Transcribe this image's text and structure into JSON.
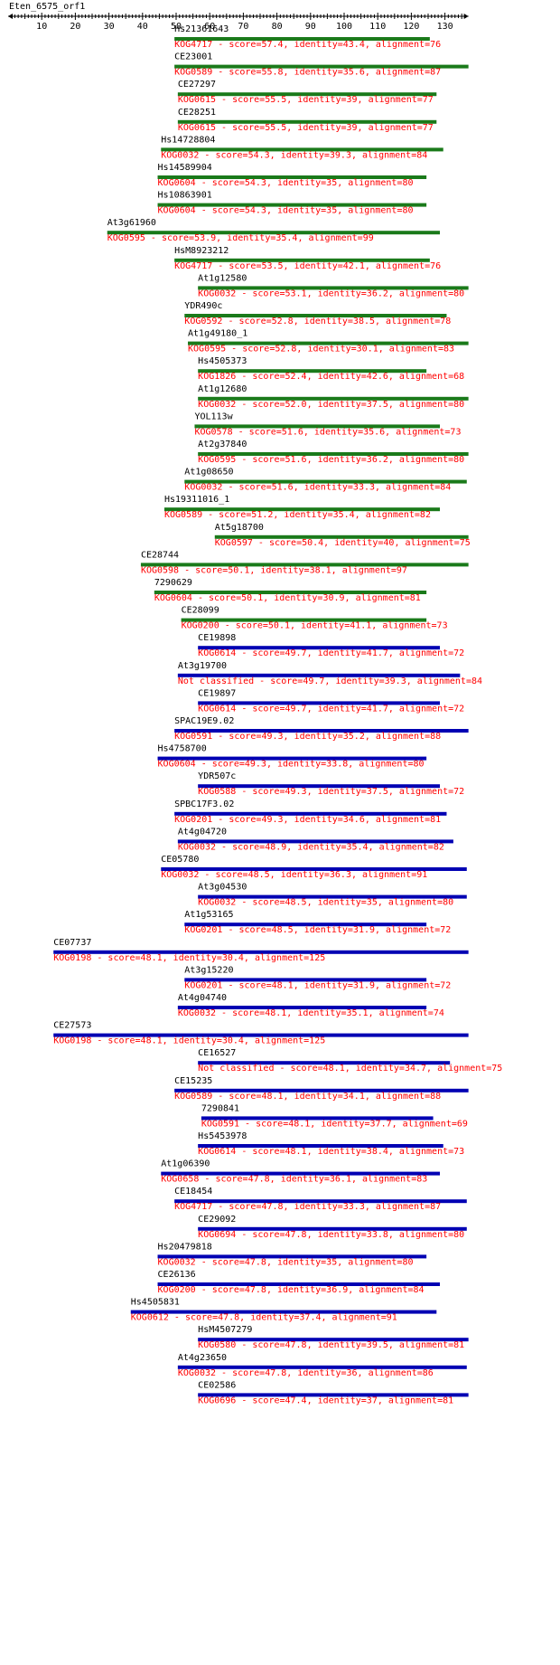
{
  "title": "Eten_6575_orf1",
  "axis": {
    "min": 0,
    "max": 137,
    "major_ticks": [
      10,
      20,
      30,
      40,
      50,
      60,
      70,
      80,
      90,
      100,
      110,
      120,
      130
    ]
  },
  "colors": {
    "green_bar": "#1a7a1a",
    "blue_bar": "#0000b3",
    "info_text": "#ff0000",
    "label_text": "#000000"
  },
  "hits": [
    {
      "name": "Hs21361643",
      "start": 49.5,
      "end": 125.5,
      "color": "green",
      "kog": "KOG4717",
      "score": "57.4",
      "identity": "43.4",
      "alignment": "76"
    },
    {
      "name": "CE23001",
      "start": 49.5,
      "end": 137,
      "color": "green",
      "kog": "KOG0589",
      "score": "55.8",
      "identity": "35.6",
      "alignment": "87"
    },
    {
      "name": "CE27297",
      "start": 50.5,
      "end": 127.5,
      "color": "green",
      "kog": "KOG0615",
      "score": "55.5",
      "identity": "39",
      "alignment": "77"
    },
    {
      "name": "CE28251",
      "start": 50.5,
      "end": 127.5,
      "color": "green",
      "kog": "KOG0615",
      "score": "55.5",
      "identity": "39",
      "alignment": "77"
    },
    {
      "name": "Hs14728804",
      "start": 45.5,
      "end": 129.5,
      "color": "green",
      "kog": "KOG0032",
      "score": "54.3",
      "identity": "39.3",
      "alignment": "84"
    },
    {
      "name": "Hs14589904",
      "start": 44.5,
      "end": 124.5,
      "color": "green",
      "kog": "KOG0604",
      "score": "54.3",
      "identity": "35",
      "alignment": "80"
    },
    {
      "name": "Hs10863901",
      "start": 44.5,
      "end": 124.5,
      "color": "green",
      "kog": "KOG0604",
      "score": "54.3",
      "identity": "35",
      "alignment": "80"
    },
    {
      "name": "At3g61960",
      "start": 29.5,
      "end": 128.5,
      "color": "green",
      "kog": "KOG0595",
      "score": "53.9",
      "identity": "35.4",
      "alignment": "99"
    },
    {
      "name": "HsM8923212",
      "start": 49.5,
      "end": 125.5,
      "color": "green",
      "kog": "KOG4717",
      "score": "53.5",
      "identity": "42.1",
      "alignment": "76"
    },
    {
      "name": "At1g12580",
      "start": 56.5,
      "end": 137,
      "color": "green",
      "kog": "KOG0032",
      "score": "53.1",
      "identity": "36.2",
      "alignment": "80"
    },
    {
      "name": "YDR490c",
      "start": 52.5,
      "end": 130.5,
      "color": "green",
      "kog": "KOG0592",
      "score": "52.8",
      "identity": "38.5",
      "alignment": "78"
    },
    {
      "name": "At1g49180_1",
      "start": 53.5,
      "end": 137,
      "color": "green",
      "kog": "KOG0595",
      "score": "52.8",
      "identity": "30.1",
      "alignment": "83"
    },
    {
      "name": "Hs4505373",
      "start": 56.5,
      "end": 124.5,
      "color": "green",
      "kog": "KOG1826",
      "score": "52.4",
      "identity": "42.6",
      "alignment": "68"
    },
    {
      "name": "At1g12680",
      "start": 56.5,
      "end": 137,
      "color": "green",
      "kog": "KOG0032",
      "score": "52.0",
      "identity": "37.5",
      "alignment": "80"
    },
    {
      "name": "YOL113w",
      "start": 55.5,
      "end": 128.5,
      "color": "green",
      "kog": "KOG0578",
      "score": "51.6",
      "identity": "35.6",
      "alignment": "73"
    },
    {
      "name": "At2g37840",
      "start": 56.5,
      "end": 137,
      "color": "green",
      "kog": "KOG0595",
      "score": "51.6",
      "identity": "36.2",
      "alignment": "80"
    },
    {
      "name": "At1g08650",
      "start": 52.5,
      "end": 136.5,
      "color": "green",
      "kog": "KOG0032",
      "score": "51.6",
      "identity": "33.3",
      "alignment": "84"
    },
    {
      "name": "Hs19311016_1",
      "start": 46.5,
      "end": 128.5,
      "color": "green",
      "kog": "KOG0589",
      "score": "51.2",
      "identity": "35.4",
      "alignment": "82"
    },
    {
      "name": "At5g18700",
      "start": 61.5,
      "end": 137,
      "color": "green",
      "kog": "KOG0597",
      "score": "50.4",
      "identity": "40",
      "alignment": "75"
    },
    {
      "name": "CE28744",
      "start": 39.5,
      "end": 137,
      "color": "green",
      "kog": "KOG0598",
      "score": "50.1",
      "identity": "38.1",
      "alignment": "97"
    },
    {
      "name": "7290629",
      "start": 43.5,
      "end": 124.5,
      "color": "green",
      "kog": "KOG0604",
      "score": "50.1",
      "identity": "30.9",
      "alignment": "81"
    },
    {
      "name": "CE28099",
      "start": 51.5,
      "end": 124.5,
      "color": "green",
      "kog": "KOG0200",
      "score": "50.1",
      "identity": "41.1",
      "alignment": "73"
    },
    {
      "name": "CE19898",
      "start": 56.5,
      "end": 128.5,
      "color": "blue",
      "kog": "KOG0614",
      "score": "49.7",
      "identity": "41.7",
      "alignment": "72"
    },
    {
      "name": "At3g19700",
      "start": 50.5,
      "end": 134.5,
      "color": "blue",
      "kog": "Not classified",
      "score": "49.7",
      "identity": "39.3",
      "alignment": "84"
    },
    {
      "name": "CE19897",
      "start": 56.5,
      "end": 128.5,
      "color": "blue",
      "kog": "KOG0614",
      "score": "49.7",
      "identity": "41.7",
      "alignment": "72"
    },
    {
      "name": "SPAC19E9.02",
      "start": 49.5,
      "end": 137,
      "color": "blue",
      "kog": "KOG0591",
      "score": "49.3",
      "identity": "35.2",
      "alignment": "88"
    },
    {
      "name": "Hs4758700",
      "start": 44.5,
      "end": 124.5,
      "color": "blue",
      "kog": "KOG0604",
      "score": "49.3",
      "identity": "33.8",
      "alignment": "80"
    },
    {
      "name": "YDR507c",
      "start": 56.5,
      "end": 128.5,
      "color": "blue",
      "kog": "KOG0588",
      "score": "49.3",
      "identity": "37.5",
      "alignment": "72"
    },
    {
      "name": "SPBC17F3.02",
      "start": 49.5,
      "end": 130.5,
      "color": "blue",
      "kog": "KOG0201",
      "score": "49.3",
      "identity": "34.6",
      "alignment": "81"
    },
    {
      "name": "At4g04720",
      "start": 50.5,
      "end": 132.5,
      "color": "blue",
      "kog": "KOG0032",
      "score": "48.9",
      "identity": "35.4",
      "alignment": "82"
    },
    {
      "name": "CE05780",
      "start": 45.5,
      "end": 136.5,
      "color": "blue",
      "kog": "KOG0032",
      "score": "48.5",
      "identity": "36.3",
      "alignment": "91"
    },
    {
      "name": "At3g04530",
      "start": 56.5,
      "end": 136.5,
      "color": "blue",
      "kog": "KOG0032",
      "score": "48.5",
      "identity": "35",
      "alignment": "80"
    },
    {
      "name": "At1g53165",
      "start": 52.5,
      "end": 124.5,
      "color": "blue",
      "kog": "KOG0201",
      "score": "48.5",
      "identity": "31.9",
      "alignment": "72"
    },
    {
      "name": "CE07737",
      "start": 13.5,
      "end": 137,
      "color": "blue",
      "kog": "KOG0198",
      "score": "48.1",
      "identity": "30.4",
      "alignment": "125"
    },
    {
      "name": "At3g15220",
      "start": 52.5,
      "end": 124.5,
      "color": "blue",
      "kog": "KOG0201",
      "score": "48.1",
      "identity": "31.9",
      "alignment": "72"
    },
    {
      "name": "At4g04740",
      "start": 50.5,
      "end": 124.5,
      "color": "blue",
      "kog": "KOG0032",
      "score": "48.1",
      "identity": "35.1",
      "alignment": "74"
    },
    {
      "name": "CE27573",
      "start": 13.5,
      "end": 137,
      "color": "blue",
      "kog": "KOG0198",
      "score": "48.1",
      "identity": "30.4",
      "alignment": "125"
    },
    {
      "name": "CE16527",
      "start": 56.5,
      "end": 131.5,
      "color": "blue",
      "kog": "Not classified",
      "score": "48.1",
      "identity": "34.7",
      "alignment": "75"
    },
    {
      "name": "CE15235",
      "start": 49.5,
      "end": 137,
      "color": "blue",
      "kog": "KOG0589",
      "score": "48.1",
      "identity": "34.1",
      "alignment": "88"
    },
    {
      "name": "7290841",
      "start": 57.5,
      "end": 126.5,
      "color": "blue",
      "kog": "KOG0591",
      "score": "48.1",
      "identity": "37.7",
      "alignment": "69"
    },
    {
      "name": "Hs5453978",
      "start": 56.5,
      "end": 129.5,
      "color": "blue",
      "kog": "KOG0614",
      "score": "48.1",
      "identity": "38.4",
      "alignment": "73"
    },
    {
      "name": "At1g06390",
      "start": 45.5,
      "end": 128.5,
      "color": "blue",
      "kog": "KOG0658",
      "score": "47.8",
      "identity": "36.1",
      "alignment": "83"
    },
    {
      "name": "CE18454",
      "start": 49.5,
      "end": 136.5,
      "color": "blue",
      "kog": "KOG4717",
      "score": "47.8",
      "identity": "33.3",
      "alignment": "87"
    },
    {
      "name": "CE29092",
      "start": 56.5,
      "end": 136.5,
      "color": "blue",
      "kog": "KOG0694",
      "score": "47.8",
      "identity": "33.8",
      "alignment": "80"
    },
    {
      "name": "Hs20479818",
      "start": 44.5,
      "end": 124.5,
      "color": "blue",
      "kog": "KOG0032",
      "score": "47.8",
      "identity": "35",
      "alignment": "80"
    },
    {
      "name": "CE26136",
      "start": 44.5,
      "end": 128.5,
      "color": "blue",
      "kog": "KOG0200",
      "score": "47.8",
      "identity": "36.9",
      "alignment": "84"
    },
    {
      "name": "Hs4505831",
      "start": 36.5,
      "end": 127.5,
      "color": "blue",
      "kog": "KOG0612",
      "score": "47.8",
      "identity": "37.4",
      "alignment": "91"
    },
    {
      "name": "HsM4507279",
      "start": 56.5,
      "end": 137,
      "color": "blue",
      "kog": "KOG0580",
      "score": "47.8",
      "identity": "39.5",
      "alignment": "81"
    },
    {
      "name": "At4g23650",
      "start": 50.5,
      "end": 136.5,
      "color": "blue",
      "kog": "KOG0032",
      "score": "47.8",
      "identity": "36",
      "alignment": "86"
    },
    {
      "name": "CE02586",
      "start": 56.5,
      "end": 137,
      "color": "blue",
      "kog": "KOG0696",
      "score": "47.4",
      "identity": "37",
      "alignment": "81"
    }
  ]
}
